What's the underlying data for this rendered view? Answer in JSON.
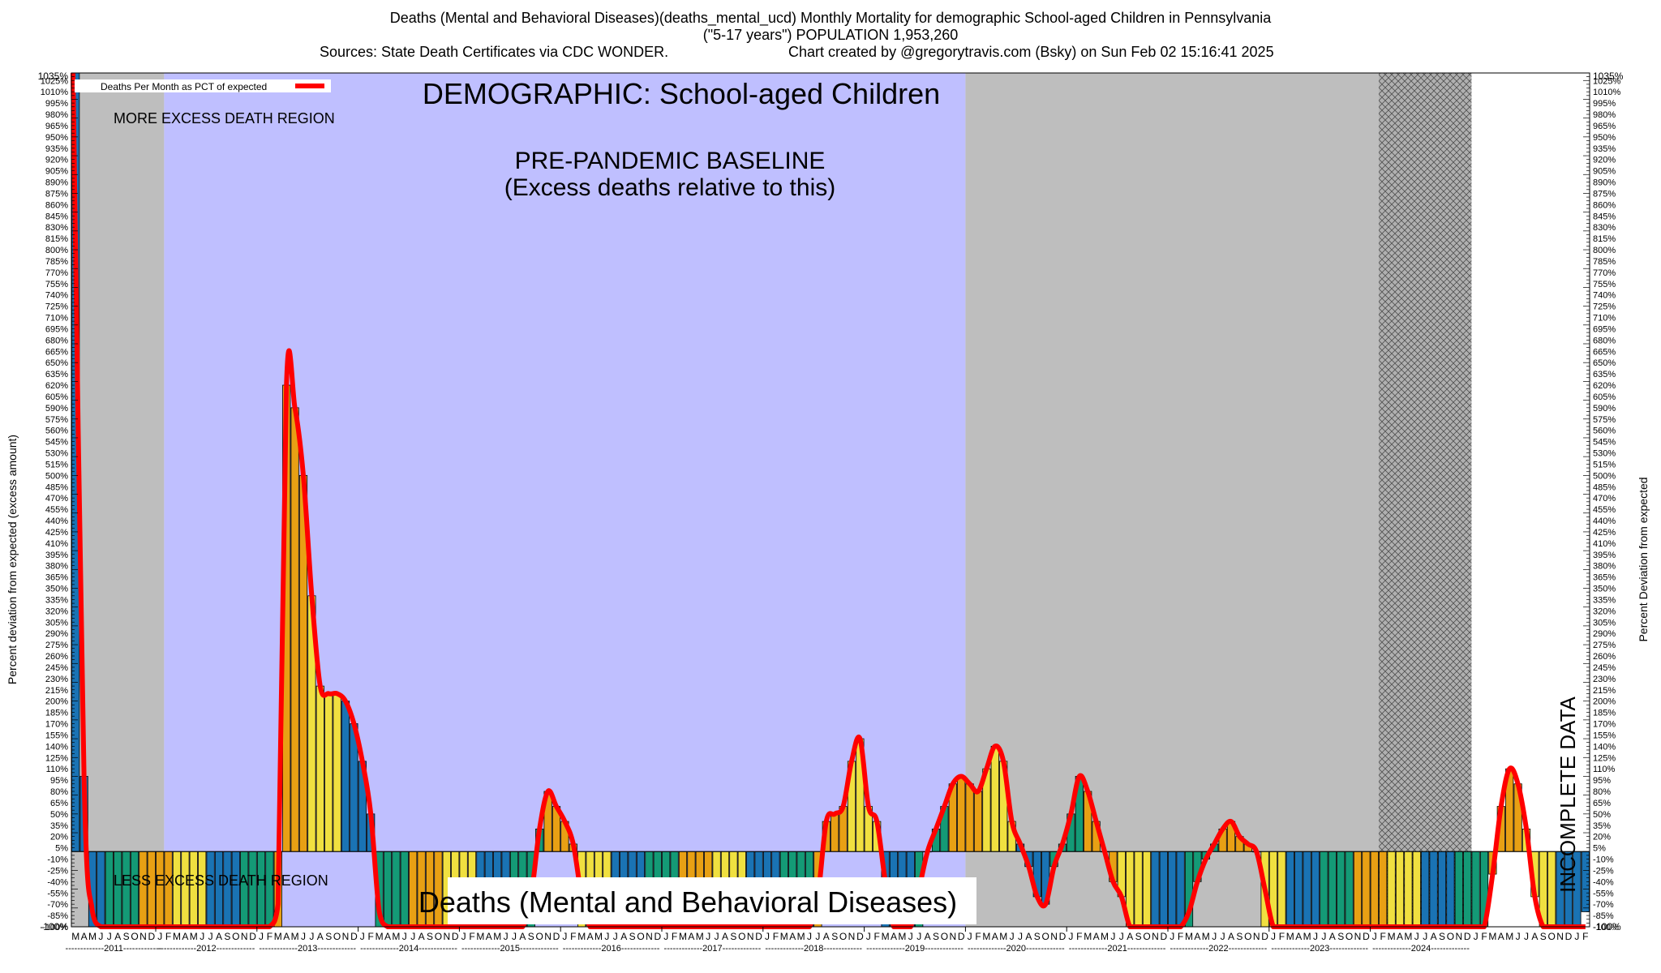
{
  "header": {
    "title_line1": "Deaths (Mental and Behavioral Diseases)(deaths_mental_ucd) Monthly Mortality for demographic School-aged Children in Pennsylvania",
    "title_line2": "(\"5-17 years\") POPULATION 1,953,260",
    "sources": "Sources: State Death Certificates via CDC WONDER.",
    "credit": "Chart created by @gregorytravis.com (Bsky) on Sun Feb 02 15:16:41 2025"
  },
  "chart_data": {
    "type": "bar",
    "title": "Deaths (Mental and Behavioral Diseases)",
    "subtitle": "DEMOGRAPHIC: School-aged Children",
    "ylabel_left": "Percent deviation from expected (excess amount)",
    "ylabel_right": "Percent Deviation from expected",
    "ylim": [
      -100,
      1035
    ],
    "y_ticks_top_label": "1035%",
    "y_ticks_bottom_label": "-100%",
    "legend": {
      "label": "Deaths Per Month as PCT of expected",
      "color": "#ff0000",
      "position": "top-left"
    },
    "annotations": {
      "baseline_title": "PRE-PANDEMIC BASELINE",
      "baseline_subtitle": "(Excess deaths relative to this)",
      "more_excess": "MORE EXCESS DEATH REGION",
      "less_excess": "LESS EXCESS DEATH REGION",
      "incomplete": "INCOMPLETE DATA"
    },
    "regions": [
      {
        "name": "gray",
        "start": "2011-03",
        "end": "2012-02",
        "color": "#bebebe"
      },
      {
        "name": "baseline",
        "start": "2012-02",
        "end": "2020-01",
        "color": "#bfbfff"
      },
      {
        "name": "gray",
        "start": "2020-01",
        "end": "2024-02",
        "color": "#bebebe"
      },
      {
        "name": "incomplete",
        "start": "2024-02",
        "end": "2025-01",
        "color": "#999999"
      }
    ],
    "start_month": "2011-03",
    "month_letters": [
      "J",
      "F",
      "M",
      "A",
      "M",
      "J",
      "J",
      "A",
      "S",
      "O",
      "N",
      "D"
    ],
    "years": [
      "2011",
      "2012",
      "2013",
      "2014",
      "2015",
      "2016",
      "2017",
      "2018",
      "2019",
      "2020",
      "2021",
      "2022",
      "2023",
      "2024"
    ],
    "bar_colors": [
      "#1a73b4",
      "#149a76",
      "#e8a014",
      "#f0e040"
    ],
    "series": [
      {
        "name": "Deaths Per Month as PCT of expected",
        "values": [
          1035,
          100,
          -100,
          -100,
          -100,
          -100,
          -100,
          -100,
          -100,
          -100,
          -100,
          -100,
          -100,
          -100,
          -100,
          -100,
          -100,
          -100,
          -100,
          -100,
          -100,
          -100,
          -100,
          -100,
          -100,
          620,
          590,
          500,
          340,
          220,
          210,
          210,
          200,
          170,
          120,
          50,
          -100,
          -100,
          -100,
          -100,
          -100,
          -100,
          -100,
          -100,
          -100,
          -100,
          -100,
          -100,
          -100,
          -100,
          -100,
          -100,
          -100,
          -100,
          -100,
          30,
          80,
          60,
          40,
          10,
          -100,
          -100,
          -100,
          -100,
          -100,
          -100,
          -100,
          -100,
          -100,
          -100,
          -100,
          -100,
          -100,
          -100,
          -100,
          -100,
          -100,
          -100,
          -100,
          -100,
          -100,
          -100,
          -100,
          -100,
          -100,
          -100,
          -100,
          -100,
          -100,
          40,
          50,
          60,
          120,
          150,
          60,
          40,
          -100,
          -100,
          -100,
          -100,
          -100,
          0,
          30,
          60,
          90,
          100,
          90,
          80,
          110,
          140,
          120,
          40,
          10,
          -20,
          -60,
          -70,
          -20,
          10,
          50,
          100,
          80,
          40,
          0,
          -40,
          -60,
          -100,
          -100,
          -100,
          -100,
          -100,
          -100,
          -100,
          -100,
          -40,
          -10,
          10,
          30,
          40,
          20,
          10,
          0,
          -100,
          -100,
          -100,
          -100,
          -100,
          -100,
          -100,
          -100,
          -100,
          -100,
          -100,
          -100,
          -100,
          -100,
          -100,
          -100,
          -100,
          -100,
          -100,
          -100,
          -100,
          -100,
          -100,
          -100,
          -100,
          -100,
          -100,
          -30,
          60,
          110,
          90,
          30,
          -60,
          -100,
          -100,
          -100,
          -100,
          -100,
          -80
        ]
      }
    ],
    "line_values": [
      1035,
      100,
      -80,
      -100,
      -100,
      -100,
      -100,
      -100,
      -100,
      -100,
      -100,
      -100,
      -100,
      -100,
      -100,
      -100,
      -100,
      -100,
      -100,
      -100,
      -100,
      -100,
      -100,
      -100,
      -70,
      620,
      590,
      500,
      340,
      220,
      210,
      210,
      200,
      170,
      120,
      50,
      -80,
      -100,
      -100,
      -100,
      -100,
      -100,
      -100,
      -100,
      -100,
      -100,
      -100,
      -100,
      -100,
      -100,
      -100,
      -100,
      -100,
      -100,
      -60,
      30,
      80,
      60,
      40,
      10,
      -60,
      -100,
      -100,
      -100,
      -100,
      -100,
      -100,
      -100,
      -100,
      -100,
      -100,
      -100,
      -100,
      -100,
      -100,
      -100,
      -100,
      -100,
      -100,
      -100,
      -100,
      -100,
      -100,
      -100,
      -100,
      -100,
      -100,
      -100,
      -60,
      40,
      50,
      60,
      120,
      150,
      60,
      40,
      -40,
      -100,
      -100,
      -100,
      -50,
      0,
      30,
      60,
      90,
      100,
      90,
      80,
      110,
      140,
      120,
      40,
      10,
      -20,
      -60,
      -70,
      -20,
      10,
      50,
      100,
      80,
      40,
      0,
      -40,
      -60,
      -100,
      -100,
      -100,
      -100,
      -100,
      -100,
      -100,
      -80,
      -40,
      -10,
      10,
      30,
      40,
      20,
      10,
      0,
      -50,
      -100,
      -100,
      -100,
      -100,
      -100,
      -100,
      -100,
      -100,
      -100,
      -100,
      -100,
      -100,
      -100,
      -100,
      -100,
      -100,
      -100,
      -100,
      -100,
      -100,
      -100,
      -100,
      -100,
      -100,
      -100,
      -100,
      -30,
      60,
      110,
      90,
      30,
      -60,
      -100,
      -100,
      -100,
      -100,
      -100,
      -100
    ]
  }
}
